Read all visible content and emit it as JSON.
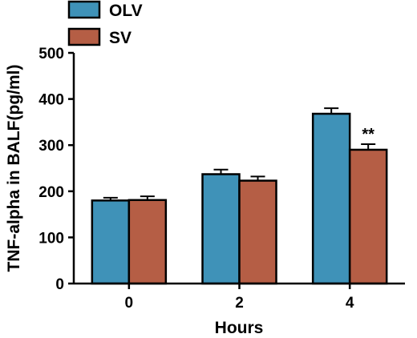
{
  "chart_data": {
    "type": "bar",
    "title": "",
    "xlabel": "Hours",
    "ylabel": "TNF-alpha in BALF(pg/ml)",
    "categories": [
      "0",
      "2",
      "4"
    ],
    "ylim": [
      0,
      500
    ],
    "yticks": [
      "0",
      "100",
      "200",
      "300",
      "400",
      "500"
    ],
    "grid": false,
    "legend_position": "top-left",
    "error_bars": true,
    "series": [
      {
        "name": "OLV",
        "color": "#3f92b8",
        "values": [
          180,
          237,
          368
        ],
        "errors": [
          6,
          10,
          12
        ]
      },
      {
        "name": "SV",
        "color": "#b55e45",
        "values": [
          181,
          223,
          290
        ],
        "errors": [
          8,
          9,
          12
        ]
      }
    ],
    "annotations": [
      {
        "text": "**",
        "category": "4",
        "series": "SV"
      }
    ]
  }
}
